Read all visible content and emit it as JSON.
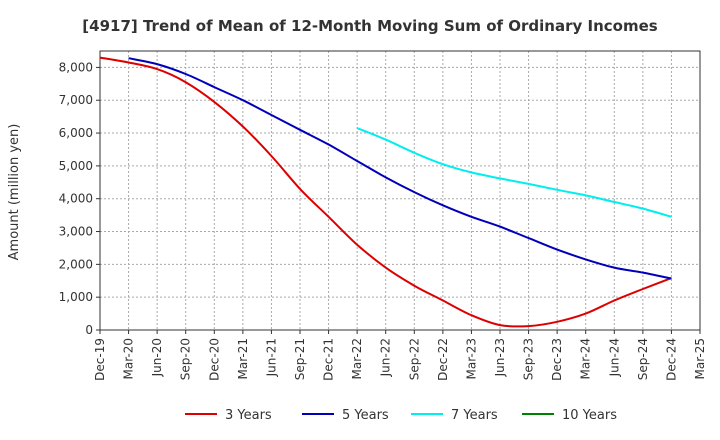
{
  "chart_data": {
    "type": "line",
    "title": "[4917]  Trend of Mean of 12-Month Moving Sum of Ordinary Incomes",
    "xlabel": "",
    "ylabel": "Amount (million yen)",
    "ylim": [
      0,
      8500
    ],
    "yticks": [
      0,
      1000,
      2000,
      3000,
      4000,
      5000,
      6000,
      7000,
      8000
    ],
    "ytick_labels": [
      "0",
      "1,000",
      "2,000",
      "3,000",
      "4,000",
      "5,000",
      "6,000",
      "7,000",
      "8,000"
    ],
    "categories": [
      "Dec-19",
      "Mar-20",
      "Jun-20",
      "Sep-20",
      "Dec-20",
      "Mar-21",
      "Jun-21",
      "Sep-21",
      "Dec-21",
      "Mar-22",
      "Jun-22",
      "Sep-22",
      "Dec-22",
      "Mar-23",
      "Jun-23",
      "Sep-23",
      "Dec-23",
      "Mar-24",
      "Jun-24",
      "Sep-24",
      "Dec-24",
      "Mar-25"
    ],
    "grid": true,
    "legend_position": "bottom",
    "series": [
      {
        "name": "3 Years",
        "color": "#dd0000",
        "values": [
          8300,
          8150,
          7950,
          7550,
          6950,
          6200,
          5300,
          4300,
          3450,
          2600,
          1900,
          1350,
          900,
          450,
          150,
          120,
          250,
          500,
          900,
          1250,
          1580,
          null
        ]
      },
      {
        "name": "5 Years",
        "color": "#0000bb",
        "values": [
          null,
          8280,
          8100,
          7800,
          7400,
          7000,
          6550,
          6100,
          5650,
          5150,
          4650,
          4200,
          3800,
          3450,
          3150,
          2800,
          2450,
          2150,
          1900,
          1750,
          1570,
          null
        ]
      },
      {
        "name": "7 Years",
        "color": "#00eeee",
        "values": [
          null,
          null,
          null,
          null,
          null,
          null,
          null,
          null,
          null,
          6150,
          5800,
          5400,
          5050,
          4800,
          4620,
          4450,
          4270,
          4100,
          3900,
          3700,
          3450,
          null
        ]
      },
      {
        "name": "10 Years",
        "color": "#008000",
        "values": [
          null,
          null,
          null,
          null,
          null,
          null,
          null,
          null,
          null,
          null,
          null,
          null,
          null,
          null,
          null,
          null,
          null,
          null,
          null,
          null,
          null,
          null
        ]
      }
    ]
  }
}
